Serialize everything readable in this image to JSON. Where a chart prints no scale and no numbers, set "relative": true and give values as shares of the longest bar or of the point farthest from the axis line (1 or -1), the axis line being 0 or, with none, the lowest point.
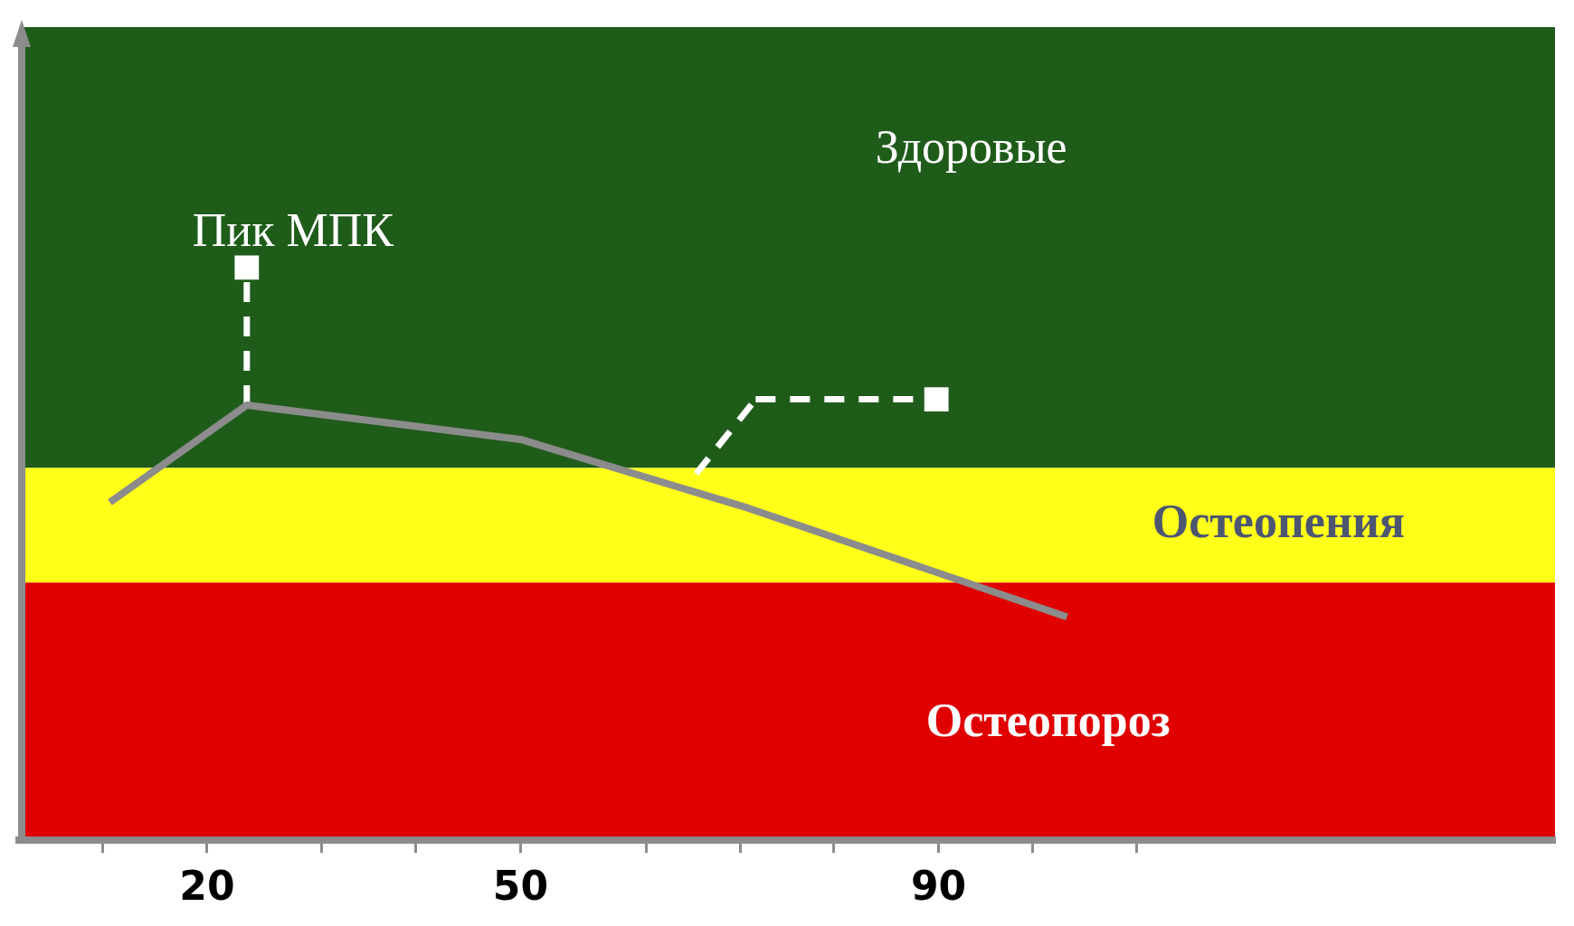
{
  "chart_data": {
    "type": "line",
    "relative": true,
    "xlim": [
      2,
      149
    ],
    "xticks": [
      {
        "value": 10,
        "label": null
      },
      20,
      {
        "value": 31,
        "label": null
      },
      {
        "value": 40,
        "label": null
      },
      50,
      {
        "value": 62,
        "label": null
      },
      {
        "value": 71,
        "label": null
      },
      {
        "value": 80,
        "label": null
      },
      90,
      {
        "value": 99,
        "label": null
      },
      {
        "value": 109,
        "label": null
      }
    ],
    "series": [
      {
        "color": "#8c8c8c",
        "x": [
          10.7,
          23.8,
          50,
          71.8,
          102.3
        ],
        "values": [
          0.59,
          0.76,
          0.7,
          0.58,
          0.39
        ]
      },
      {
        "color": "#ffffff",
        "x": [
          23.8,
          23.8
        ],
        "values": [
          0.76,
          1
        ],
        "line_style": "dashed",
        "marker": "square"
      },
      {
        "color": "#ffffff",
        "x": [
          66.8,
          72.5
        ],
        "values": [
          0.64,
          0.77
        ],
        "line_style": "dashed"
      },
      {
        "color": "#ffffff",
        "x": [
          72.5,
          89.8
        ],
        "values": [
          0.77,
          0.77
        ],
        "line_style": "dashed",
        "marker": "square"
      }
    ],
    "bands": [
      {
        "axis": "y",
        "from": 0.65,
        "to": 1.42,
        "label": "Здоровые",
        "color": "#1f5c1a"
      },
      {
        "axis": "y",
        "from": 0.45,
        "to": 0.65,
        "label": "Остеопения",
        "color": "#ffff1a"
      },
      {
        "axis": "y",
        "from": 0,
        "to": 0.45,
        "label": "Остеопороз",
        "color": "#e00000"
      }
    ],
    "annotations": [
      {
        "text": "Пик МПК",
        "x": 23.8,
        "y": 1
      }
    ],
    "grid": false,
    "legend": false,
    "tick_labels": "x"
  }
}
